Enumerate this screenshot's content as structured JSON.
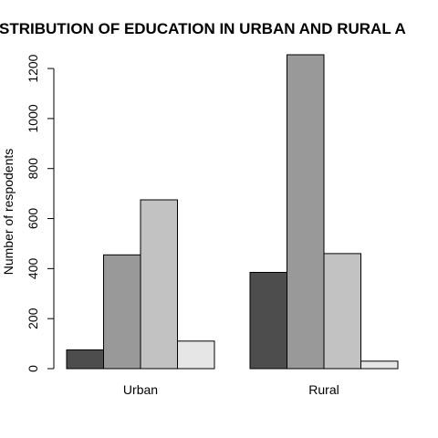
{
  "chart_data": {
    "type": "bar",
    "title": "DISTRIBUTION OF EDUCATION IN URBAN AND RURAL AREAS",
    "title_visible": "STRIBUTION OF EDUCATION IN URBAN AND RURAL A",
    "xlabel": "",
    "ylabel": "Number of respodents",
    "categories": [
      "Urban",
      "Rural"
    ],
    "series": [
      {
        "color": "#4d4d4d",
        "values": [
          75,
          385
        ]
      },
      {
        "color": "#999999",
        "values": [
          455,
          1255
        ]
      },
      {
        "color": "#c2c2c2",
        "values": [
          675,
          460
        ]
      },
      {
        "color": "#e6e6e6",
        "values": [
          110,
          30
        ]
      }
    ],
    "yticks": [
      0,
      200,
      400,
      600,
      800,
      1000,
      1200
    ],
    "ylim": [
      0,
      1255
    ],
    "grid": false,
    "legend": "none"
  }
}
